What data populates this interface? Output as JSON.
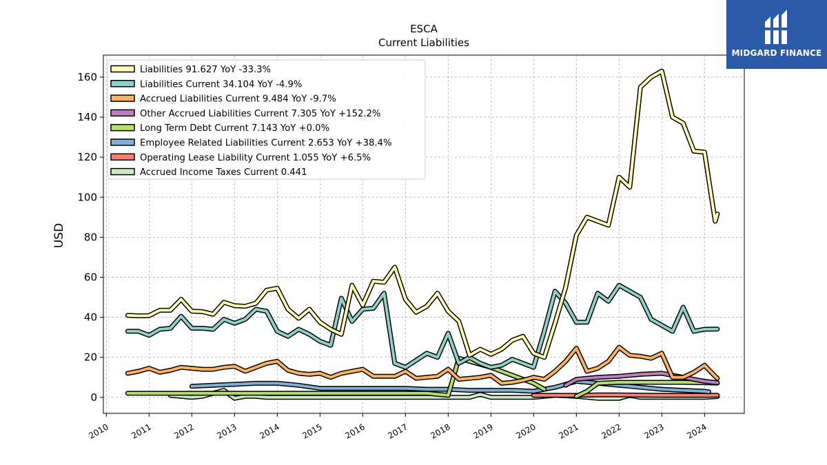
{
  "brand": {
    "name": "MIDGARD FINANCE",
    "bg_color": "#2b5aa8"
  },
  "chart_data": {
    "type": "line",
    "title": "ESCA",
    "subtitle": "Current  Liabilities",
    "ylabel": "USD",
    "xlabel": "",
    "xlim": [
      2009.93,
      2024.93
    ],
    "ylim": [
      -8,
      171
    ],
    "yticks": [
      0,
      20,
      40,
      60,
      80,
      100,
      120,
      140,
      160
    ],
    "xticks": [
      2010,
      2011,
      2012,
      2013,
      2014,
      2015,
      2016,
      2017,
      2018,
      2019,
      2020,
      2021,
      2022,
      2023,
      2024
    ],
    "grid": true,
    "legend_position": "top-left",
    "series": [
      {
        "name": "Liabilities",
        "legend": "Liabilities  91.627 YoY -33.3%",
        "color": "#ffffb2",
        "x": [
          2010.5,
          2010.75,
          2011.0,
          2011.25,
          2011.5,
          2011.75,
          2012.0,
          2012.25,
          2012.5,
          2012.75,
          2013.0,
          2013.25,
          2013.5,
          2013.75,
          2014.0,
          2014.25,
          2014.5,
          2014.75,
          2015.0,
          2015.25,
          2015.5,
          2015.75,
          2016.0,
          2016.25,
          2016.5,
          2016.75,
          2017.0,
          2017.25,
          2017.5,
          2017.75,
          2018.0,
          2018.25,
          2018.5,
          2018.75,
          2019.0,
          2019.25,
          2019.5,
          2019.75,
          2020.0,
          2020.25,
          2020.5,
          2020.75,
          2021.0,
          2021.25,
          2021.5,
          2021.75,
          2022.0,
          2022.25,
          2022.5,
          2022.75,
          2023.0,
          2023.25,
          2023.5,
          2023.75,
          2024.0,
          2024.25,
          2024.3
        ],
        "y": [
          41,
          40.7,
          40.8,
          43.5,
          43.5,
          49,
          43,
          42.8,
          41.5,
          47.5,
          45.8,
          45.5,
          47,
          53.5,
          54.5,
          44,
          39.5,
          44,
          37.5,
          34,
          31.5,
          56,
          46,
          58,
          57.5,
          65,
          49,
          42.5,
          45.5,
          52,
          43,
          38,
          21,
          24,
          21.5,
          24,
          28.5,
          30.5,
          22,
          20,
          37,
          55,
          81,
          90,
          88,
          86,
          110,
          105,
          155,
          160,
          163,
          140,
          137,
          123,
          122.5,
          88,
          91.6
        ]
      },
      {
        "name": "Liabilities Current",
        "legend": "Liabilities Current  34.104 YoY -4.9%",
        "color": "#8dd3c7",
        "x": [
          2010.5,
          2010.75,
          2011.0,
          2011.25,
          2011.5,
          2011.75,
          2012.0,
          2012.25,
          2012.5,
          2012.75,
          2013.0,
          2013.25,
          2013.5,
          2013.75,
          2014.0,
          2014.25,
          2014.5,
          2014.75,
          2015.0,
          2015.25,
          2015.5,
          2015.75,
          2016.0,
          2016.25,
          2016.5,
          2016.75,
          2017.0,
          2017.25,
          2017.5,
          2017.75,
          2018.0,
          2018.25,
          2018.5,
          2018.75,
          2019.0,
          2019.25,
          2019.5,
          2019.75,
          2020.0,
          2020.25,
          2020.5,
          2020.75,
          2021.0,
          2021.25,
          2021.5,
          2021.75,
          2022.0,
          2022.25,
          2022.5,
          2022.75,
          2023.0,
          2023.25,
          2023.5,
          2023.75,
          2024.0,
          2024.25,
          2024.3
        ],
        "y": [
          33,
          33,
          31,
          34,
          34.5,
          40.5,
          34.5,
          34.5,
          34,
          39,
          37,
          39,
          44,
          43,
          33,
          30.5,
          34,
          31.5,
          28,
          26,
          49.5,
          38,
          44,
          44.5,
          52,
          17,
          15,
          18.5,
          22,
          20,
          32,
          17,
          20,
          17,
          15,
          16,
          19,
          17,
          15,
          33,
          53,
          47,
          37.5,
          37.5,
          52,
          48,
          56,
          53,
          50,
          39,
          36,
          33,
          45,
          33,
          34,
          34.1,
          34.1
        ]
      },
      {
        "name": "Accrued Liabilities Current",
        "legend": "Accrued Liabilities Current  9.484 YoY -9.7%",
        "color": "#fdb462",
        "x": [
          2010.5,
          2010.75,
          2011.0,
          2011.25,
          2011.5,
          2011.75,
          2012.0,
          2012.25,
          2012.5,
          2012.75,
          2013.0,
          2013.25,
          2013.5,
          2013.75,
          2014.0,
          2014.25,
          2014.5,
          2014.75,
          2015.0,
          2015.25,
          2015.5,
          2015.75,
          2016.0,
          2016.25,
          2016.5,
          2016.75,
          2017.0,
          2017.25,
          2017.5,
          2017.75,
          2018.0,
          2018.25,
          2018.5,
          2018.75,
          2019.0,
          2019.25,
          2019.5,
          2019.75,
          2020.0,
          2020.25,
          2020.5,
          2020.75,
          2021.0,
          2021.25,
          2021.5,
          2021.75,
          2022.0,
          2022.25,
          2022.5,
          2022.75,
          2023.0,
          2023.25,
          2023.5,
          2023.75,
          2024.0,
          2024.25,
          2024.3
        ],
        "y": [
          12,
          13,
          14.5,
          12.5,
          13.5,
          15,
          14.5,
          14,
          14,
          15,
          15.5,
          13,
          15,
          17,
          18,
          13.5,
          12,
          11.5,
          12,
          10,
          12,
          13,
          14,
          10.5,
          10.5,
          10.5,
          13,
          9.5,
          10,
          10.5,
          14,
          9,
          9.5,
          10,
          11,
          7,
          7.5,
          8.5,
          10,
          9,
          13,
          18,
          24.5,
          13,
          14.5,
          18,
          25,
          21,
          20.5,
          19.5,
          22,
          10,
          10,
          12.5,
          16,
          10.5,
          9.5
        ]
      },
      {
        "name": "Other Accrued Liabilities Current",
        "legend": "Other Accrued Liabilities Current  7.305 YoY +152.2%",
        "color": "#bc80bd",
        "x": [
          2020.75,
          2021.0,
          2021.5,
          2022.0,
          2022.5,
          2023.0,
          2023.5,
          2024.0,
          2024.3
        ],
        "y": [
          6,
          9,
          10,
          10.5,
          11.5,
          12,
          10,
          8,
          7.3
        ]
      },
      {
        "name": "Long Term Debt Current",
        "legend": "Long Term Debt Current  7.143 YoY +0.0%",
        "color": "#b3de69",
        "x": [
          2010.5,
          2011.0,
          2011.5,
          2012.0,
          2012.5,
          2013.0,
          2013.5,
          2014.0,
          2014.5,
          2015.0,
          2015.5,
          2016.0,
          2016.5,
          2017.0,
          2017.5,
          2018.0,
          2018.25,
          2018.5,
          2019.0,
          2019.5,
          2020.0,
          2020.25,
          null,
          2021.0,
          2021.25,
          2021.5,
          2022.0,
          2022.5,
          2023.0,
          2023.5,
          2024.0,
          2024.3
        ],
        "y": [
          2,
          2,
          2,
          2,
          2,
          2,
          2,
          2,
          2,
          2,
          2,
          2,
          2,
          2,
          2,
          1,
          19.5,
          18,
          15,
          11,
          7,
          4,
          null,
          0.5,
          3,
          7,
          7.5,
          7.5,
          7.5,
          7.5,
          7.3,
          7.1
        ]
      },
      {
        "name": "Employee Related Liabilities Current",
        "legend": "Employee Related Liabilities Current  2.653 YoY +38.4%",
        "color": "#80b1d3",
        "x": [
          2012.0,
          2012.5,
          2013.0,
          2013.5,
          2014.0,
          2014.5,
          2015.0,
          2015.5,
          2016.0,
          2016.5,
          2017.0,
          2017.5,
          2018.0,
          2018.5,
          2019.0,
          2019.5,
          2020.0,
          2020.5,
          2021.0,
          2021.5,
          2022.0,
          2022.5,
          2023.0,
          2023.5,
          2024.0,
          2024.1
        ],
        "y": [
          5.5,
          6,
          6.5,
          7,
          7,
          6,
          4.5,
          4.5,
          4.5,
          4.5,
          4.5,
          4,
          4,
          3.5,
          3.5,
          3.5,
          3,
          5,
          8,
          7,
          6,
          5,
          4,
          3.5,
          3,
          2.7
        ]
      },
      {
        "name": "Operating Lease Liability Current",
        "legend": "Operating Lease Liability Current  1.055 YoY +6.5%",
        "color": "#fb8072",
        "x": [
          2020.0,
          2020.5,
          2021.0,
          2021.5,
          2022.0,
          2022.5,
          2023.0,
          2023.5,
          2024.0,
          2024.3
        ],
        "y": [
          1,
          1,
          1,
          1.2,
          1.2,
          1.1,
          1,
          1,
          1,
          1.05
        ]
      },
      {
        "name": "Accrued Income Taxes Current",
        "legend": "Accrued Income Taxes Current  0.441",
        "color": "#ccebc5",
        "x": [
          2011.5,
          2012.0,
          2012.25,
          2012.5,
          2012.75,
          2013.0,
          2013.25,
          2013.5,
          2013.75,
          2014.0,
          2014.5,
          2015.0,
          2015.5,
          2016.0,
          2016.5,
          2017.0,
          2017.5,
          2018.0,
          2018.5,
          2018.75,
          2019.0,
          2019.5,
          2020.0,
          2020.5,
          2021.0,
          2021.5,
          2022.0,
          2022.25,
          2022.5,
          2023.0,
          2023.5,
          2024.0,
          2024.3
        ],
        "y": [
          1,
          0,
          0.5,
          2,
          3.5,
          -0.5,
          0.5,
          0.5,
          0,
          0,
          0,
          0,
          0,
          0,
          0,
          0,
          0,
          0,
          0,
          1.5,
          0,
          0,
          0,
          1,
          0.5,
          -0.5,
          -0.5,
          1,
          0,
          0,
          0,
          0,
          0.4
        ]
      }
    ]
  }
}
